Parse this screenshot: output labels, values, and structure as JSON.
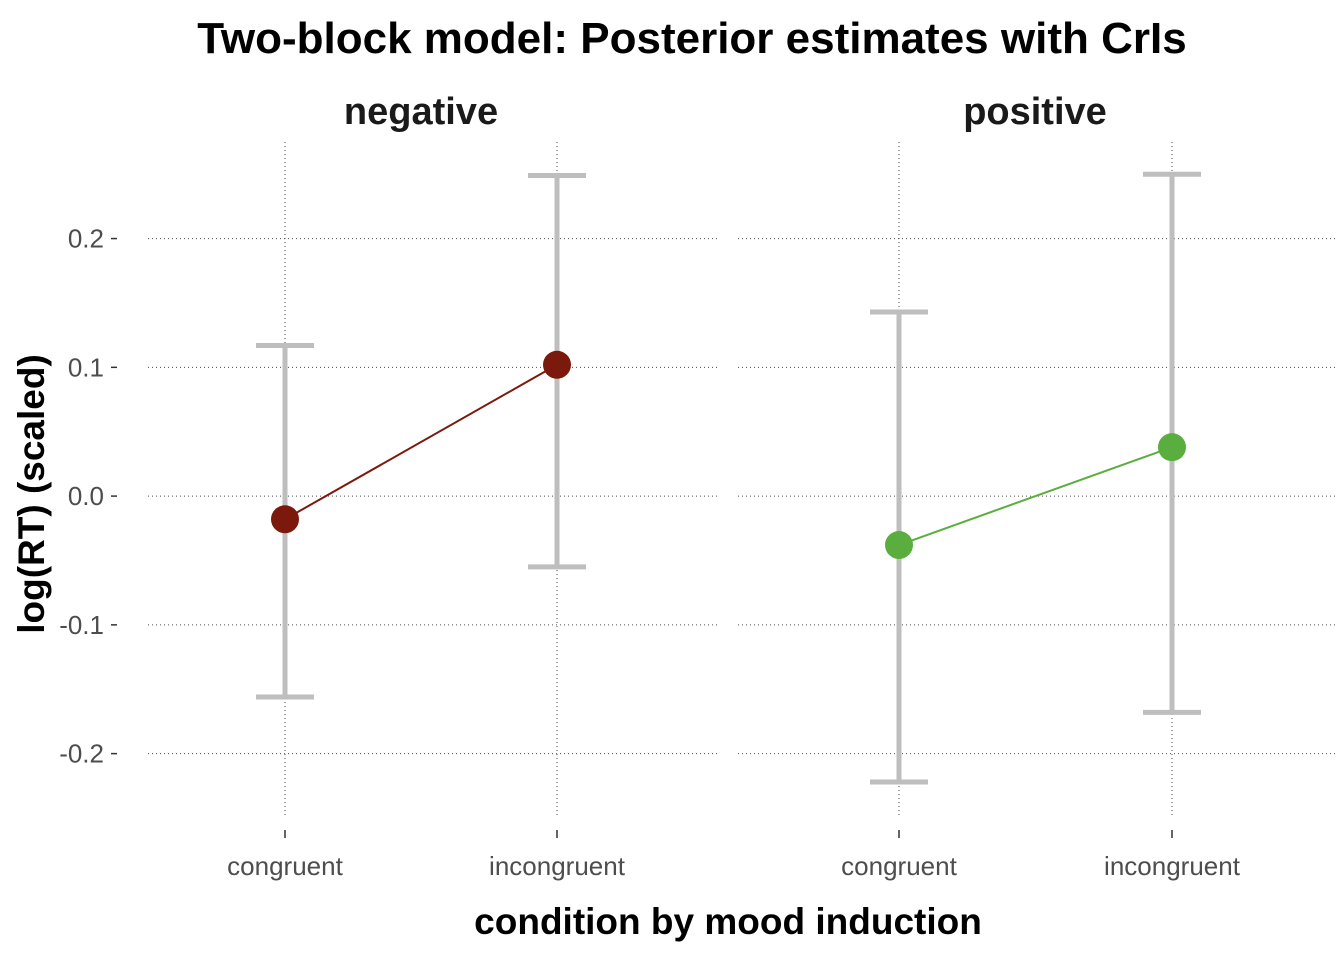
{
  "chart_data": {
    "type": "errorbar",
    "title": "Two-block model: Posterior estimates with CrIs",
    "xlabel": "condition by mood induction",
    "ylabel": "log(RT) (scaled)",
    "ylim": [
      -0.25,
      0.275
    ],
    "yticks": [
      0.2,
      0.1,
      0.0,
      -0.1,
      -0.2
    ],
    "ytick_labels": [
      "0.2",
      "0.1",
      "0.0",
      "-0.1",
      "-0.2"
    ],
    "categories": [
      "congruent",
      "incongruent"
    ],
    "grid": true,
    "legend": "none",
    "panels": [
      {
        "name": "negative",
        "color": "#7b1a0c",
        "points": [
          {
            "x": "congruent",
            "estimate": -0.018,
            "lower": -0.156,
            "upper": 0.117
          },
          {
            "x": "incongruent",
            "estimate": 0.102,
            "lower": -0.055,
            "upper": 0.249
          }
        ]
      },
      {
        "name": "positive",
        "color": "#5aae3e",
        "points": [
          {
            "x": "congruent",
            "estimate": -0.038,
            "lower": -0.222,
            "upper": 0.143
          },
          {
            "x": "incongruent",
            "estimate": 0.038,
            "lower": -0.168,
            "upper": 0.25
          }
        ]
      }
    ]
  }
}
